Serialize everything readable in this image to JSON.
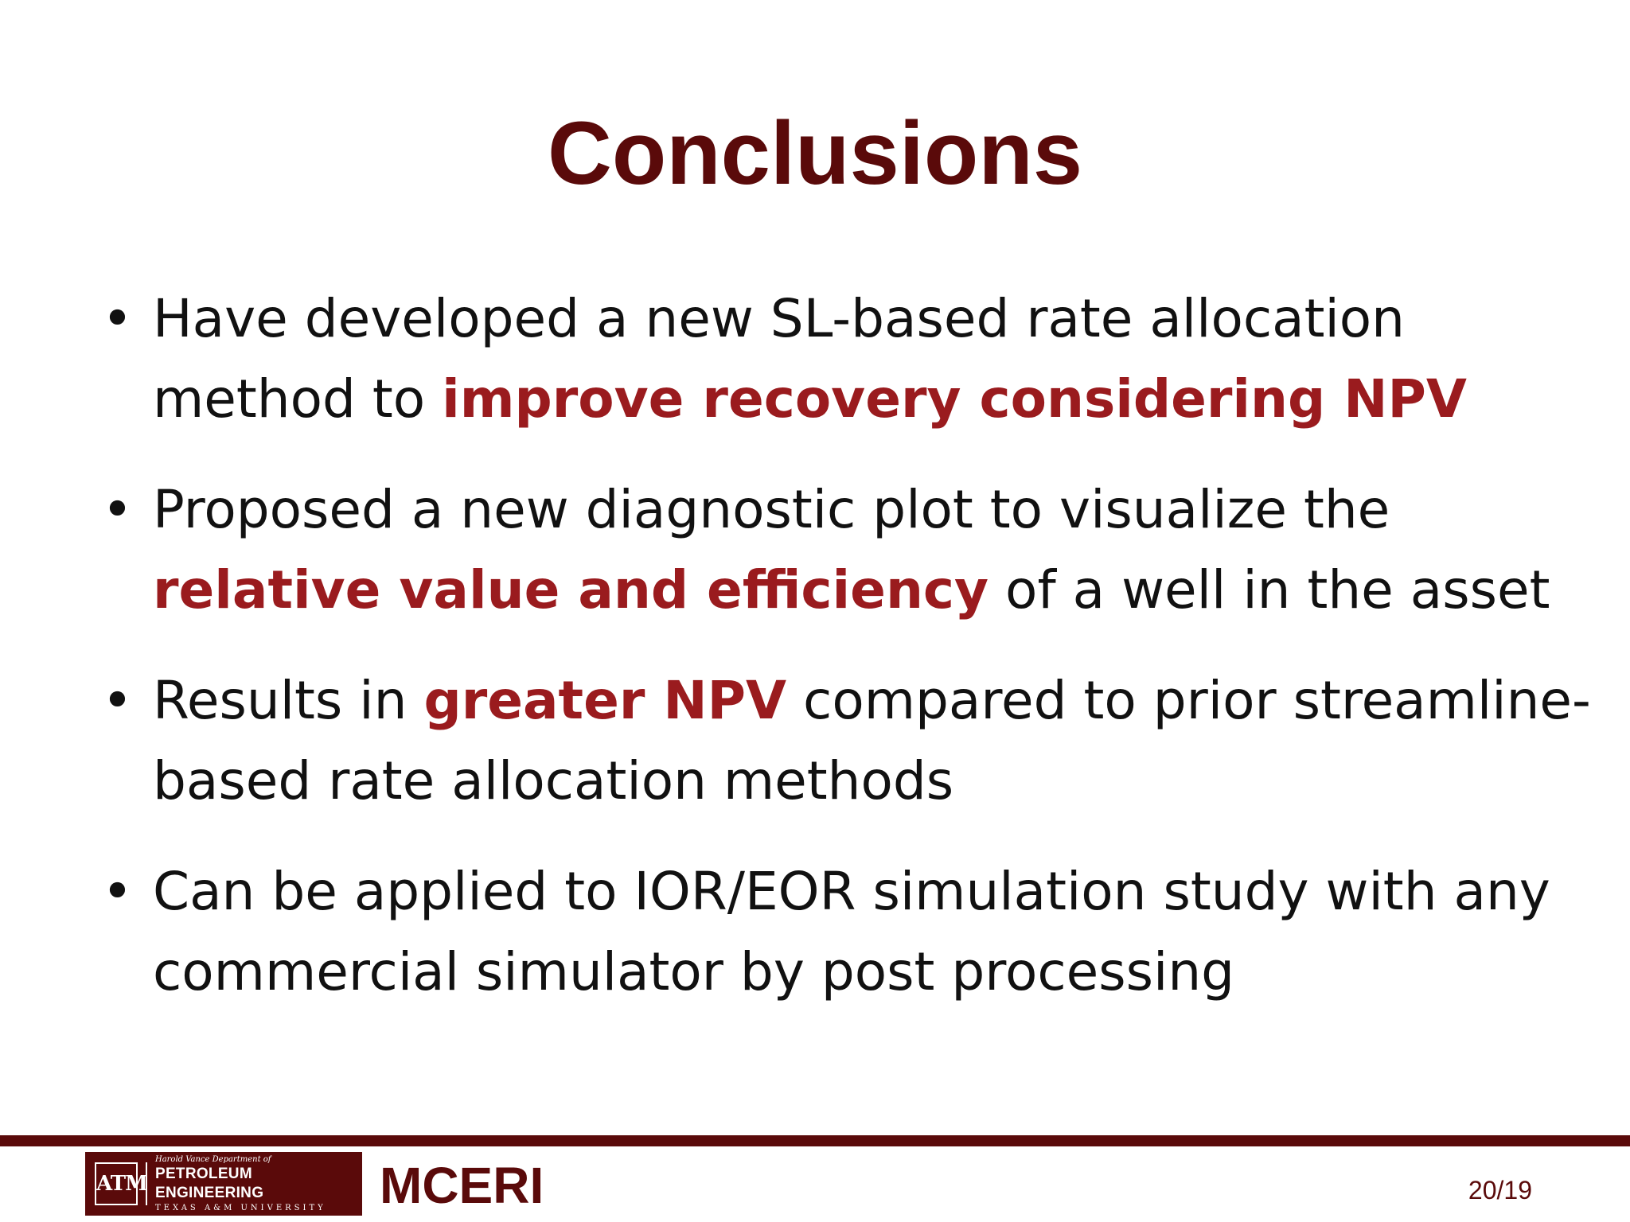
{
  "slide": {
    "title": "Conclusions",
    "bullets": [
      {
        "parts": [
          {
            "text": "Have developed a new SL-based rate allocation method to ",
            "highlight": false
          },
          {
            "text": "improve recovery considering NPV",
            "highlight": true
          }
        ]
      },
      {
        "parts": [
          {
            "text": "Proposed a new diagnostic plot to visualize the ",
            "highlight": false
          },
          {
            "text": "relative value and efficiency",
            "highlight": true
          },
          {
            "text": " of a well in the asset",
            "highlight": false
          }
        ]
      },
      {
        "parts": [
          {
            "text": "Results in ",
            "highlight": false
          },
          {
            "text": "greater NPV",
            "highlight": true
          },
          {
            "text": " compared to prior streamline-based rate allocation methods",
            "highlight": false
          }
        ]
      },
      {
        "parts": [
          {
            "text": "Can be applied to IOR/EOR simulation study with any commercial simulator by post processing",
            "highlight": false
          }
        ]
      }
    ]
  },
  "footer": {
    "logo": {
      "mark": "ATM",
      "small_text": "Harold Vance Department of",
      "main_text": "PETROLEUM ENGINEERING",
      "sub_text": "TEXAS A&M UNIVERSITY"
    },
    "organization": "MCERI",
    "page_number": "20/19"
  },
  "colors": {
    "maroon": "#5a0a0a",
    "highlight_red": "#9a1b1e",
    "body_text": "#111111"
  }
}
